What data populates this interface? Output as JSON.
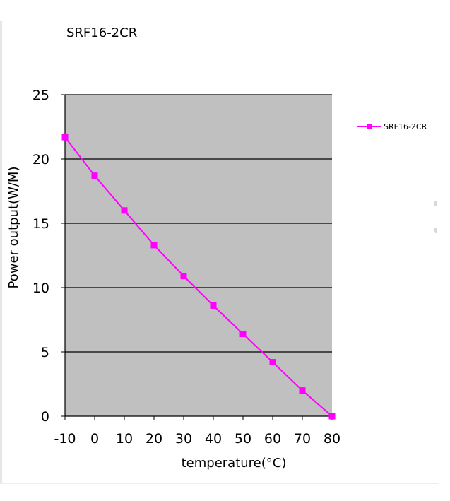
{
  "chart_data": {
    "type": "line",
    "title": "SRF16-2CR",
    "xlabel": "temperature(°C)",
    "ylabel": "Power output(W/M)",
    "xlim": [
      -10,
      80
    ],
    "ylim": [
      0,
      25
    ],
    "x_ticks": [
      "-10",
      "0",
      "10",
      "20",
      "30",
      "40",
      "50",
      "60",
      "70",
      "80"
    ],
    "y_ticks": [
      "0",
      "5",
      "10",
      "15",
      "20",
      "25"
    ],
    "grid": true,
    "legend_position": "right",
    "plot_background": "#c0c0c0",
    "series": [
      {
        "name": "SRF16-2CR",
        "color": "#ff00ff",
        "marker": "square",
        "x": [
          -10,
          0,
          10,
          20,
          30,
          40,
          50,
          60,
          70,
          80
        ],
        "y": [
          21.7,
          18.7,
          16.0,
          13.3,
          10.9,
          8.6,
          6.4,
          4.2,
          2.0,
          0.0
        ]
      }
    ]
  }
}
